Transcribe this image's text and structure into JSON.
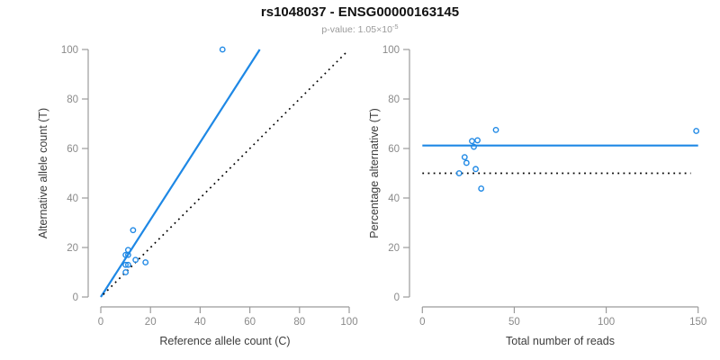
{
  "header": {
    "title": "rs1048037 - ENSG00000163145",
    "pvalue_prefix": "p-value: 1.05×10",
    "pvalue_exponent": "-5"
  },
  "colors": {
    "accent_blue": "#1E88E5",
    "line_black": "#000000",
    "axis_gray": "#9b9b9b",
    "tick_label_gray": "#8a8a8a",
    "axis_title": "#3c3c3c",
    "title_black": "#111111",
    "subtitle_gray": "#9a9a9a"
  },
  "chart_data": [
    {
      "type": "scatter",
      "panel": "left",
      "xlabel": "Reference allele count (C)",
      "ylabel": "Alternative allele count (T)",
      "xlim": [
        0,
        100
      ],
      "ylim": [
        0,
        100
      ],
      "xticks": [
        0,
        20,
        40,
        60,
        80,
        100
      ],
      "yticks": [
        0,
        20,
        40,
        60,
        80,
        100
      ],
      "grid": false,
      "points": [
        [
          49,
          100
        ],
        [
          13,
          27
        ],
        [
          11,
          19
        ],
        [
          10,
          17
        ],
        [
          11,
          17
        ],
        [
          14,
          15
        ],
        [
          18,
          14
        ],
        [
          10,
          13
        ],
        [
          11,
          13
        ],
        [
          10,
          10
        ]
      ],
      "lines": [
        {
          "name": "fit-line",
          "color": "blue",
          "style": "solid",
          "x1": 0,
          "y1": 0,
          "x2": 64,
          "y2": 100
        },
        {
          "name": "identity-line",
          "color": "black",
          "style": "dotted",
          "x1": 1,
          "y1": 1,
          "x2": 99,
          "y2": 99
        }
      ]
    },
    {
      "type": "scatter",
      "panel": "right",
      "xlabel": "Total number of reads",
      "ylabel": "Percentage alternative (T)",
      "xlim": [
        0,
        150
      ],
      "ylim": [
        0,
        100
      ],
      "xticks": [
        0,
        50,
        100,
        150
      ],
      "yticks": [
        0,
        20,
        40,
        60,
        80,
        100
      ],
      "grid": false,
      "points": [
        [
          149,
          67.1
        ],
        [
          40,
          67.5
        ],
        [
          30,
          63.3
        ],
        [
          27,
          63.0
        ],
        [
          28,
          60.7
        ],
        [
          29,
          51.7
        ],
        [
          32,
          43.8
        ],
        [
          23,
          56.5
        ],
        [
          24,
          54.2
        ],
        [
          20,
          50.0
        ]
      ],
      "lines": [
        {
          "name": "mean-percentage-line",
          "color": "blue",
          "style": "solid",
          "x1": 0,
          "y1": 61.2,
          "x2": 150,
          "y2": 61.2
        },
        {
          "name": "fifty-percent-line",
          "color": "black",
          "style": "dotted",
          "x1": 0,
          "y1": 50,
          "x2": 146,
          "y2": 50
        }
      ]
    }
  ]
}
